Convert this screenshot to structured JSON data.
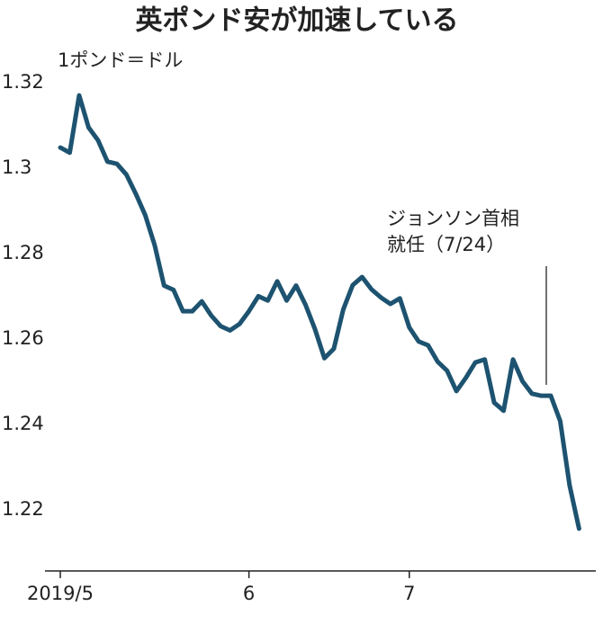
{
  "chart_data": {
    "type": "line",
    "title": "英ポンド安が加速している",
    "y_label": "1ポンド＝ドル",
    "annotation": [
      "ジョンソン首相",
      "就任（7/24）"
    ],
    "categories": [
      "2019/5",
      null,
      null,
      null,
      null,
      null,
      null,
      null,
      null,
      null,
      null,
      null,
      null,
      null,
      null,
      null,
      null,
      null,
      null,
      null,
      "6",
      null,
      null,
      null,
      null,
      null,
      null,
      null,
      null,
      null,
      null,
      null,
      null,
      null,
      null,
      null,
      null,
      "7",
      null,
      null,
      null,
      null,
      null,
      null,
      null,
      null,
      null,
      null,
      null,
      null,
      null,
      null,
      null,
      null,
      null,
      null
    ],
    "values": [
      1.3048,
      1.3036,
      1.317,
      1.3095,
      1.3065,
      1.3015,
      1.301,
      1.2985,
      1.294,
      1.289,
      1.282,
      1.2725,
      1.2715,
      1.2665,
      1.2665,
      1.2688,
      1.2655,
      1.263,
      1.262,
      1.2635,
      1.2665,
      1.27,
      1.269,
      1.2735,
      1.269,
      1.2725,
      1.268,
      1.2623,
      1.2555,
      1.2577,
      1.2669,
      1.2726,
      1.2745,
      1.2716,
      1.2697,
      1.2682,
      1.2695,
      1.2627,
      1.2594,
      1.2585,
      1.2547,
      1.2526,
      1.2478,
      1.2509,
      1.2545,
      1.2552,
      1.2451,
      1.2432,
      1.2552,
      1.2501,
      1.2472,
      1.2467,
      1.2467,
      1.2408,
      1.2257,
      1.2156
    ],
    "color": "#1d5370",
    "ylim": [
      1.2057,
      1.3225
    ],
    "yticks": [
      1.22,
      1.24,
      1.26,
      1.28,
      1.3,
      1.32
    ],
    "grid": false
  }
}
